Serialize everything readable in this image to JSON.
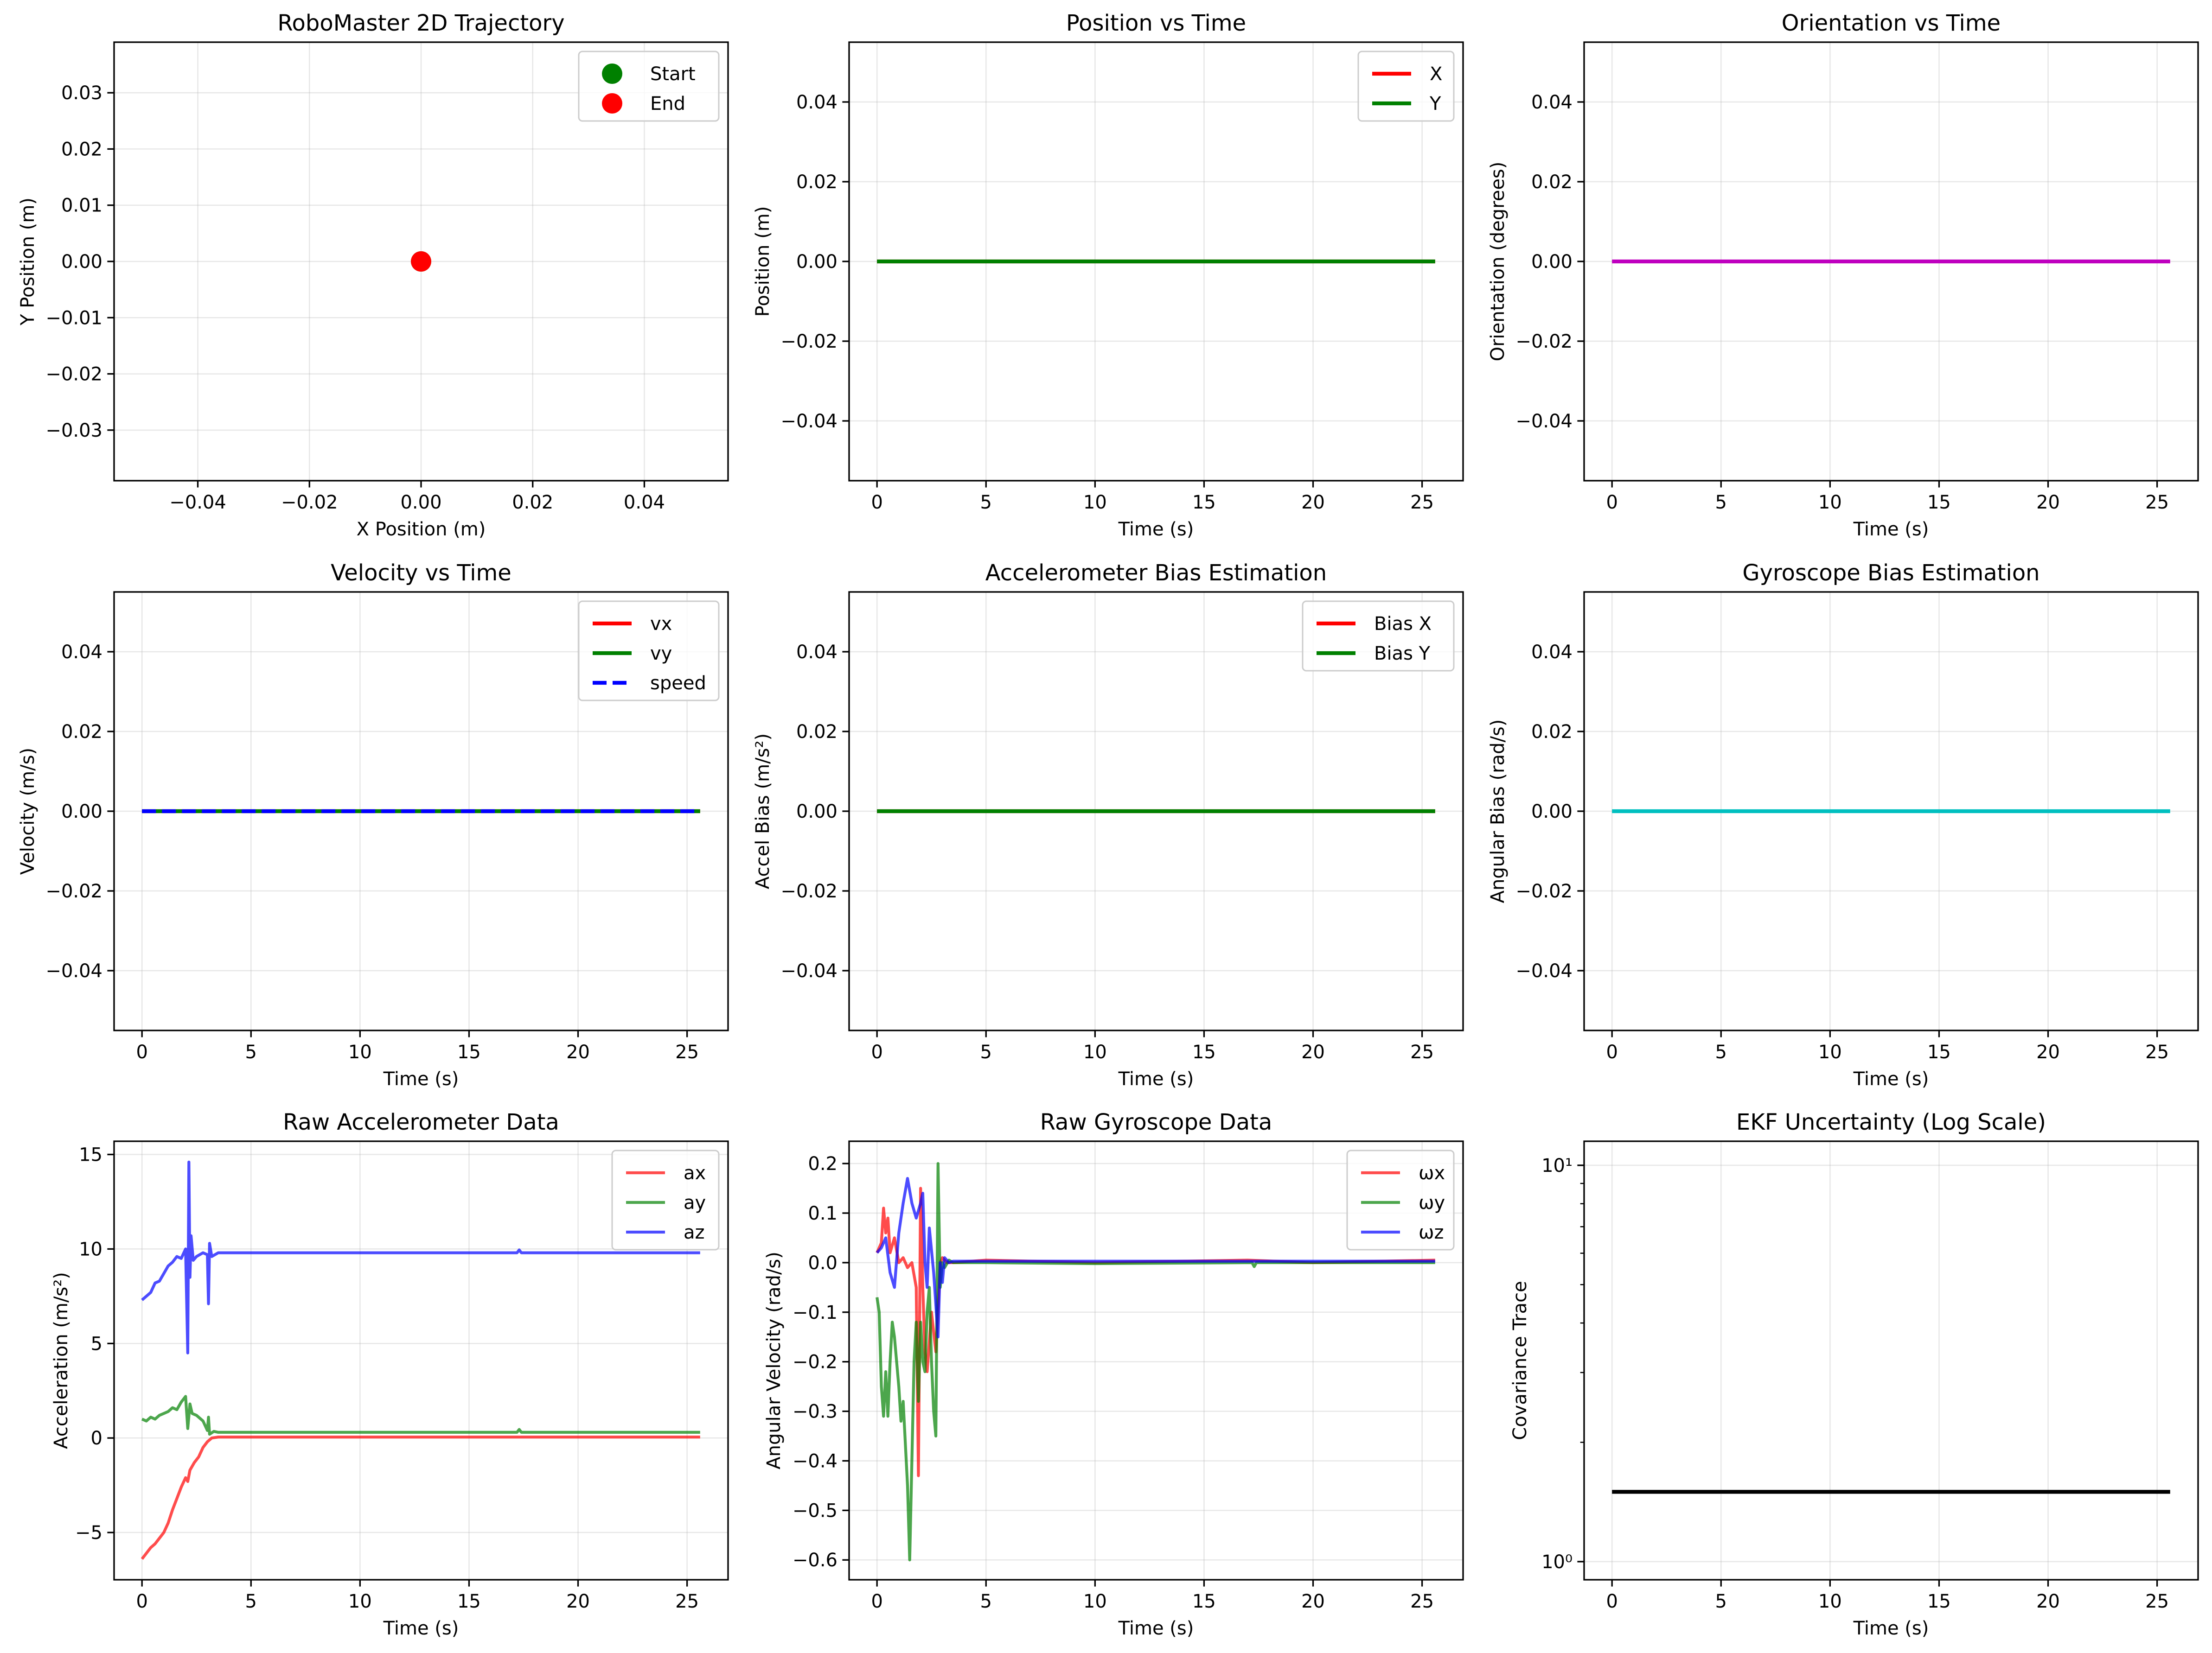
{
  "figure": {
    "background": "#ffffff"
  },
  "chart_data": [
    {
      "type": "scatter",
      "title": "RoboMaster 2D Trajectory",
      "xlabel": "X Position (m)",
      "ylabel": "Y Position (m)",
      "xlim": [
        -0.055,
        0.055
      ],
      "ylim": [
        -0.039,
        0.039
      ],
      "xticks": [
        -0.04,
        -0.02,
        0.0,
        0.02,
        0.04
      ],
      "xtick_labels": [
        "−0.04",
        "−0.02",
        "0.00",
        "0.02",
        "0.04"
      ],
      "yticks": [
        -0.03,
        -0.02,
        -0.01,
        0.0,
        0.01,
        0.02,
        0.03
      ],
      "ytick_labels": [
        "−0.03",
        "−0.02",
        "−0.01",
        "0.00",
        "0.01",
        "0.02",
        "0.03"
      ],
      "grid": true,
      "legend_position": "top-right",
      "series": [
        {
          "name": "Start",
          "kind": "marker",
          "color": "#008000",
          "x": [
            0
          ],
          "y": [
            0
          ]
        },
        {
          "name": "End",
          "kind": "marker",
          "color": "#ff0000",
          "x": [
            0
          ],
          "y": [
            0
          ]
        }
      ]
    },
    {
      "type": "line",
      "title": "Position vs Time",
      "xlabel": "Time (s)",
      "ylabel": "Position (m)",
      "xlim": [
        -1.28,
        26.88
      ],
      "ylim": [
        -0.055,
        0.055
      ],
      "xticks": [
        0,
        5,
        10,
        15,
        20,
        25
      ],
      "xtick_labels": [
        "0",
        "5",
        "10",
        "15",
        "20",
        "25"
      ],
      "yticks": [
        -0.04,
        -0.02,
        0.0,
        0.02,
        0.04
      ],
      "ytick_labels": [
        "−0.04",
        "−0.02",
        "0.00",
        "0.02",
        "0.04"
      ],
      "grid": true,
      "legend_position": "top-right",
      "series": [
        {
          "name": "X",
          "color": "#ff0000",
          "width": 2,
          "x": [
            0,
            25.6
          ],
          "y": [
            0,
            0
          ]
        },
        {
          "name": "Y",
          "color": "#008000",
          "width": 2,
          "x": [
            0,
            25.6
          ],
          "y": [
            0,
            0
          ]
        }
      ]
    },
    {
      "type": "line",
      "title": "Orientation vs Time",
      "xlabel": "Time (s)",
      "ylabel": "Orientation (degrees)",
      "xlim": [
        -1.28,
        26.88
      ],
      "ylim": [
        -0.055,
        0.055
      ],
      "xticks": [
        0,
        5,
        10,
        15,
        20,
        25
      ],
      "xtick_labels": [
        "0",
        "5",
        "10",
        "15",
        "20",
        "25"
      ],
      "yticks": [
        -0.04,
        -0.02,
        0.0,
        0.02,
        0.04
      ],
      "ytick_labels": [
        "−0.04",
        "−0.02",
        "0.00",
        "0.02",
        "0.04"
      ],
      "grid": true,
      "series": [
        {
          "color": "#bf00bf",
          "width": 2,
          "x": [
            0,
            25.6
          ],
          "y": [
            0,
            0
          ]
        }
      ]
    },
    {
      "type": "line",
      "title": "Velocity vs Time",
      "xlabel": "Time (s)",
      "ylabel": "Velocity (m/s)",
      "xlim": [
        -1.28,
        26.88
      ],
      "ylim": [
        -0.055,
        0.055
      ],
      "xticks": [
        0,
        5,
        10,
        15,
        20,
        25
      ],
      "xtick_labels": [
        "0",
        "5",
        "10",
        "15",
        "20",
        "25"
      ],
      "yticks": [
        -0.04,
        -0.02,
        0.0,
        0.02,
        0.04
      ],
      "ytick_labels": [
        "−0.04",
        "−0.02",
        "0.00",
        "0.02",
        "0.04"
      ],
      "grid": true,
      "legend_position": "top-right",
      "series": [
        {
          "name": "vx",
          "color": "#ff0000",
          "width": 2,
          "x": [
            0,
            25.6
          ],
          "y": [
            0,
            0
          ]
        },
        {
          "name": "vy",
          "color": "#008000",
          "width": 2,
          "x": [
            0,
            25.6
          ],
          "y": [
            0,
            0
          ]
        },
        {
          "name": "speed",
          "color": "#0000ff",
          "width": 2,
          "dash": true,
          "x": [
            0,
            25.6
          ],
          "y": [
            0,
            0
          ]
        }
      ]
    },
    {
      "type": "line",
      "title": "Accelerometer Bias Estimation",
      "xlabel": "Time (s)",
      "ylabel": "Accel Bias (m/s²)",
      "xlim": [
        -1.28,
        26.88
      ],
      "ylim": [
        -0.055,
        0.055
      ],
      "xticks": [
        0,
        5,
        10,
        15,
        20,
        25
      ],
      "xtick_labels": [
        "0",
        "5",
        "10",
        "15",
        "20",
        "25"
      ],
      "yticks": [
        -0.04,
        -0.02,
        0.0,
        0.02,
        0.04
      ],
      "ytick_labels": [
        "−0.04",
        "−0.02",
        "0.00",
        "0.02",
        "0.04"
      ],
      "grid": true,
      "legend_position": "top-right",
      "series": [
        {
          "name": "Bias X",
          "color": "#ff0000",
          "width": 2,
          "x": [
            0,
            25.6
          ],
          "y": [
            0,
            0
          ]
        },
        {
          "name": "Bias Y",
          "color": "#008000",
          "width": 2,
          "x": [
            0,
            25.6
          ],
          "y": [
            0,
            0
          ]
        }
      ]
    },
    {
      "type": "line",
      "title": "Gyroscope Bias Estimation",
      "xlabel": "Time (s)",
      "ylabel": "Angular Bias (rad/s)",
      "xlim": [
        -1.28,
        26.88
      ],
      "ylim": [
        -0.055,
        0.055
      ],
      "xticks": [
        0,
        5,
        10,
        15,
        20,
        25
      ],
      "xtick_labels": [
        "0",
        "5",
        "10",
        "15",
        "20",
        "25"
      ],
      "yticks": [
        -0.04,
        -0.02,
        0.0,
        0.02,
        0.04
      ],
      "ytick_labels": [
        "−0.04",
        "−0.02",
        "0.00",
        "0.02",
        "0.04"
      ],
      "grid": true,
      "series": [
        {
          "color": "#00bfbf",
          "width": 2,
          "x": [
            0,
            25.6
          ],
          "y": [
            0,
            0
          ]
        }
      ]
    },
    {
      "type": "line",
      "title": "Raw Accelerometer Data",
      "xlabel": "Time (s)",
      "ylabel": "Acceleration (m/s²)",
      "xlim": [
        -1.28,
        26.88
      ],
      "ylim": [
        -7.5,
        15.7
      ],
      "xticks": [
        0,
        5,
        10,
        15,
        20,
        25
      ],
      "xtick_labels": [
        "0",
        "5",
        "10",
        "15",
        "20",
        "25"
      ],
      "yticks": [
        -5,
        0,
        5,
        10,
        15
      ],
      "ytick_labels": [
        "−5",
        "0",
        "5",
        "10",
        "15"
      ],
      "grid": true,
      "legend_position": "top-right",
      "series": [
        {
          "name": "ax",
          "color": "#ff0000",
          "opacity": 0.7,
          "width": 1.5,
          "x": [
            0,
            0.2,
            0.4,
            0.6,
            0.8,
            1.0,
            1.2,
            1.4,
            1.6,
            1.8,
            2.0,
            2.1,
            2.2,
            2.4,
            2.6,
            2.8,
            3.0,
            3.2,
            3.5,
            5,
            10,
            17.2,
            17.3,
            20,
            25.6
          ],
          "y": [
            -6.4,
            -6.1,
            -5.8,
            -5.6,
            -5.3,
            -5.0,
            -4.5,
            -3.8,
            -3.2,
            -2.6,
            -2.1,
            -2.3,
            -1.7,
            -1.3,
            -1.0,
            -0.5,
            -0.2,
            0.0,
            0.05,
            0.05,
            0.05,
            0.05,
            0.05,
            0.05,
            0.05
          ]
        },
        {
          "name": "ay",
          "color": "#008000",
          "opacity": 0.7,
          "width": 1.5,
          "x": [
            0,
            0.2,
            0.4,
            0.6,
            0.8,
            1.0,
            1.2,
            1.4,
            1.6,
            1.8,
            2.0,
            2.1,
            2.2,
            2.3,
            2.5,
            2.8,
            3.0,
            3.05,
            3.1,
            3.3,
            3.5,
            5,
            10,
            17.2,
            17.3,
            17.4,
            20,
            25.6
          ],
          "y": [
            1.0,
            0.9,
            1.1,
            1.0,
            1.2,
            1.3,
            1.4,
            1.6,
            1.5,
            1.9,
            2.2,
            0.5,
            1.8,
            1.3,
            1.2,
            0.9,
            0.4,
            1.1,
            0.2,
            0.35,
            0.3,
            0.3,
            0.3,
            0.3,
            0.45,
            0.3,
            0.3,
            0.3
          ]
        },
        {
          "name": "az",
          "color": "#0000ff",
          "opacity": 0.7,
          "width": 1.5,
          "x": [
            0,
            0.2,
            0.4,
            0.6,
            0.8,
            1.0,
            1.2,
            1.4,
            1.6,
            1.8,
            2.0,
            2.1,
            2.15,
            2.2,
            2.25,
            2.35,
            2.5,
            2.8,
            3.0,
            3.05,
            3.1,
            3.2,
            3.5,
            5,
            10,
            17.2,
            17.3,
            17.4,
            20,
            25.6
          ],
          "y": [
            7.3,
            7.5,
            7.7,
            8.2,
            8.3,
            8.7,
            9.1,
            9.3,
            9.6,
            9.5,
            10.0,
            4.5,
            14.6,
            8.5,
            10.7,
            9.4,
            9.6,
            9.8,
            9.7,
            7.1,
            10.3,
            9.6,
            9.8,
            9.8,
            9.8,
            9.8,
            9.95,
            9.8,
            9.8,
            9.8
          ]
        }
      ]
    },
    {
      "type": "line",
      "title": "Raw Gyroscope Data",
      "xlabel": "Time (s)",
      "ylabel": "Angular Velocity (rad/s)",
      "xlim": [
        -1.28,
        26.88
      ],
      "ylim": [
        -0.64,
        0.245
      ],
      "xticks": [
        0,
        5,
        10,
        15,
        20,
        25
      ],
      "xtick_labels": [
        "0",
        "5",
        "10",
        "15",
        "20",
        "25"
      ],
      "yticks": [
        -0.6,
        -0.5,
        -0.4,
        -0.3,
        -0.2,
        -0.1,
        0.0,
        0.1,
        0.2
      ],
      "ytick_labels": [
        "−0.6",
        "−0.5",
        "−0.4",
        "−0.3",
        "−0.2",
        "−0.1",
        "0.0",
        "0.1",
        "0.2"
      ],
      "grid": true,
      "legend_position": "top-right",
      "series": [
        {
          "name": "ωx",
          "color": "#ff0000",
          "opacity": 0.7,
          "width": 1.5,
          "x": [
            0,
            0.2,
            0.3,
            0.4,
            0.5,
            0.6,
            0.8,
            1.0,
            1.2,
            1.4,
            1.6,
            1.8,
            1.9,
            2.0,
            2.1,
            2.2,
            2.3,
            2.5,
            2.7,
            2.9,
            3.0,
            3.2,
            3.5,
            5,
            10,
            17,
            20,
            25.6
          ],
          "y": [
            0.02,
            0.04,
            0.11,
            0.06,
            0.09,
            0.02,
            0.05,
            0.0,
            0.01,
            -0.01,
            0.0,
            -0.05,
            -0.43,
            0.15,
            -0.05,
            -0.18,
            -0.22,
            -0.1,
            -0.18,
            0.0,
            0.01,
            0.0,
            0.0,
            0.005,
            0.0,
            0.005,
            0.0,
            0.005
          ]
        },
        {
          "name": "ωy",
          "color": "#008000",
          "opacity": 0.7,
          "width": 1.5,
          "x": [
            0,
            0.1,
            0.2,
            0.3,
            0.4,
            0.5,
            0.6,
            0.7,
            0.8,
            1.0,
            1.1,
            1.2,
            1.4,
            1.5,
            1.6,
            1.7,
            1.8,
            1.9,
            2.0,
            2.1,
            2.2,
            2.3,
            2.4,
            2.5,
            2.6,
            2.7,
            2.8,
            2.9,
            3.0,
            3.1,
            3.3,
            3.5,
            5,
            10,
            17.2,
            17.3,
            17.4,
            20,
            25.6
          ],
          "y": [
            -0.07,
            -0.1,
            -0.25,
            -0.31,
            -0.22,
            -0.31,
            -0.2,
            -0.12,
            -0.15,
            -0.25,
            -0.32,
            -0.28,
            -0.45,
            -0.6,
            -0.4,
            -0.2,
            -0.12,
            -0.28,
            -0.12,
            -0.2,
            -0.22,
            -0.1,
            -0.05,
            -0.2,
            -0.3,
            -0.35,
            0.2,
            -0.05,
            0.0,
            -0.01,
            0.005,
            0.0,
            0.0,
            -0.002,
            0.0,
            -0.008,
            0.0,
            0.0,
            0.0
          ]
        },
        {
          "name": "ωz",
          "color": "#0000ff",
          "opacity": 0.7,
          "width": 1.5,
          "x": [
            0,
            0.2,
            0.4,
            0.6,
            0.8,
            1.0,
            1.2,
            1.4,
            1.6,
            1.8,
            2.0,
            2.1,
            2.2,
            2.3,
            2.4,
            2.6,
            2.8,
            2.9,
            3.0,
            3.1,
            3.3,
            3.5,
            5,
            10,
            15,
            20,
            25.6
          ],
          "y": [
            0.02,
            0.03,
            0.05,
            -0.02,
            -0.05,
            0.06,
            0.12,
            0.17,
            0.12,
            0.09,
            0.12,
            0.14,
            0.0,
            -0.05,
            0.07,
            -0.02,
            -0.15,
            0.0,
            -0.04,
            0.01,
            0.0,
            0.003,
            0.003,
            0.003,
            0.003,
            0.003,
            0.003
          ]
        }
      ]
    },
    {
      "type": "line",
      "title": "EKF Uncertainty (Log Scale)",
      "xlabel": "Time (s)",
      "ylabel": "Covariance Trace",
      "xlim": [
        -1.28,
        26.88
      ],
      "ylim": [
        0.9,
        11.5
      ],
      "yscale": "log",
      "xticks": [
        0,
        5,
        10,
        15,
        20,
        25
      ],
      "xtick_labels": [
        "0",
        "5",
        "10",
        "15",
        "20",
        "25"
      ],
      "yticks": [
        1,
        10
      ],
      "ytick_labels": [
        "10⁰",
        "10¹"
      ],
      "grid": true,
      "series": [
        {
          "color": "#000000",
          "width": 2,
          "x": [
            0,
            25.6
          ],
          "y": [
            1.5,
            1.5
          ]
        }
      ]
    }
  ]
}
